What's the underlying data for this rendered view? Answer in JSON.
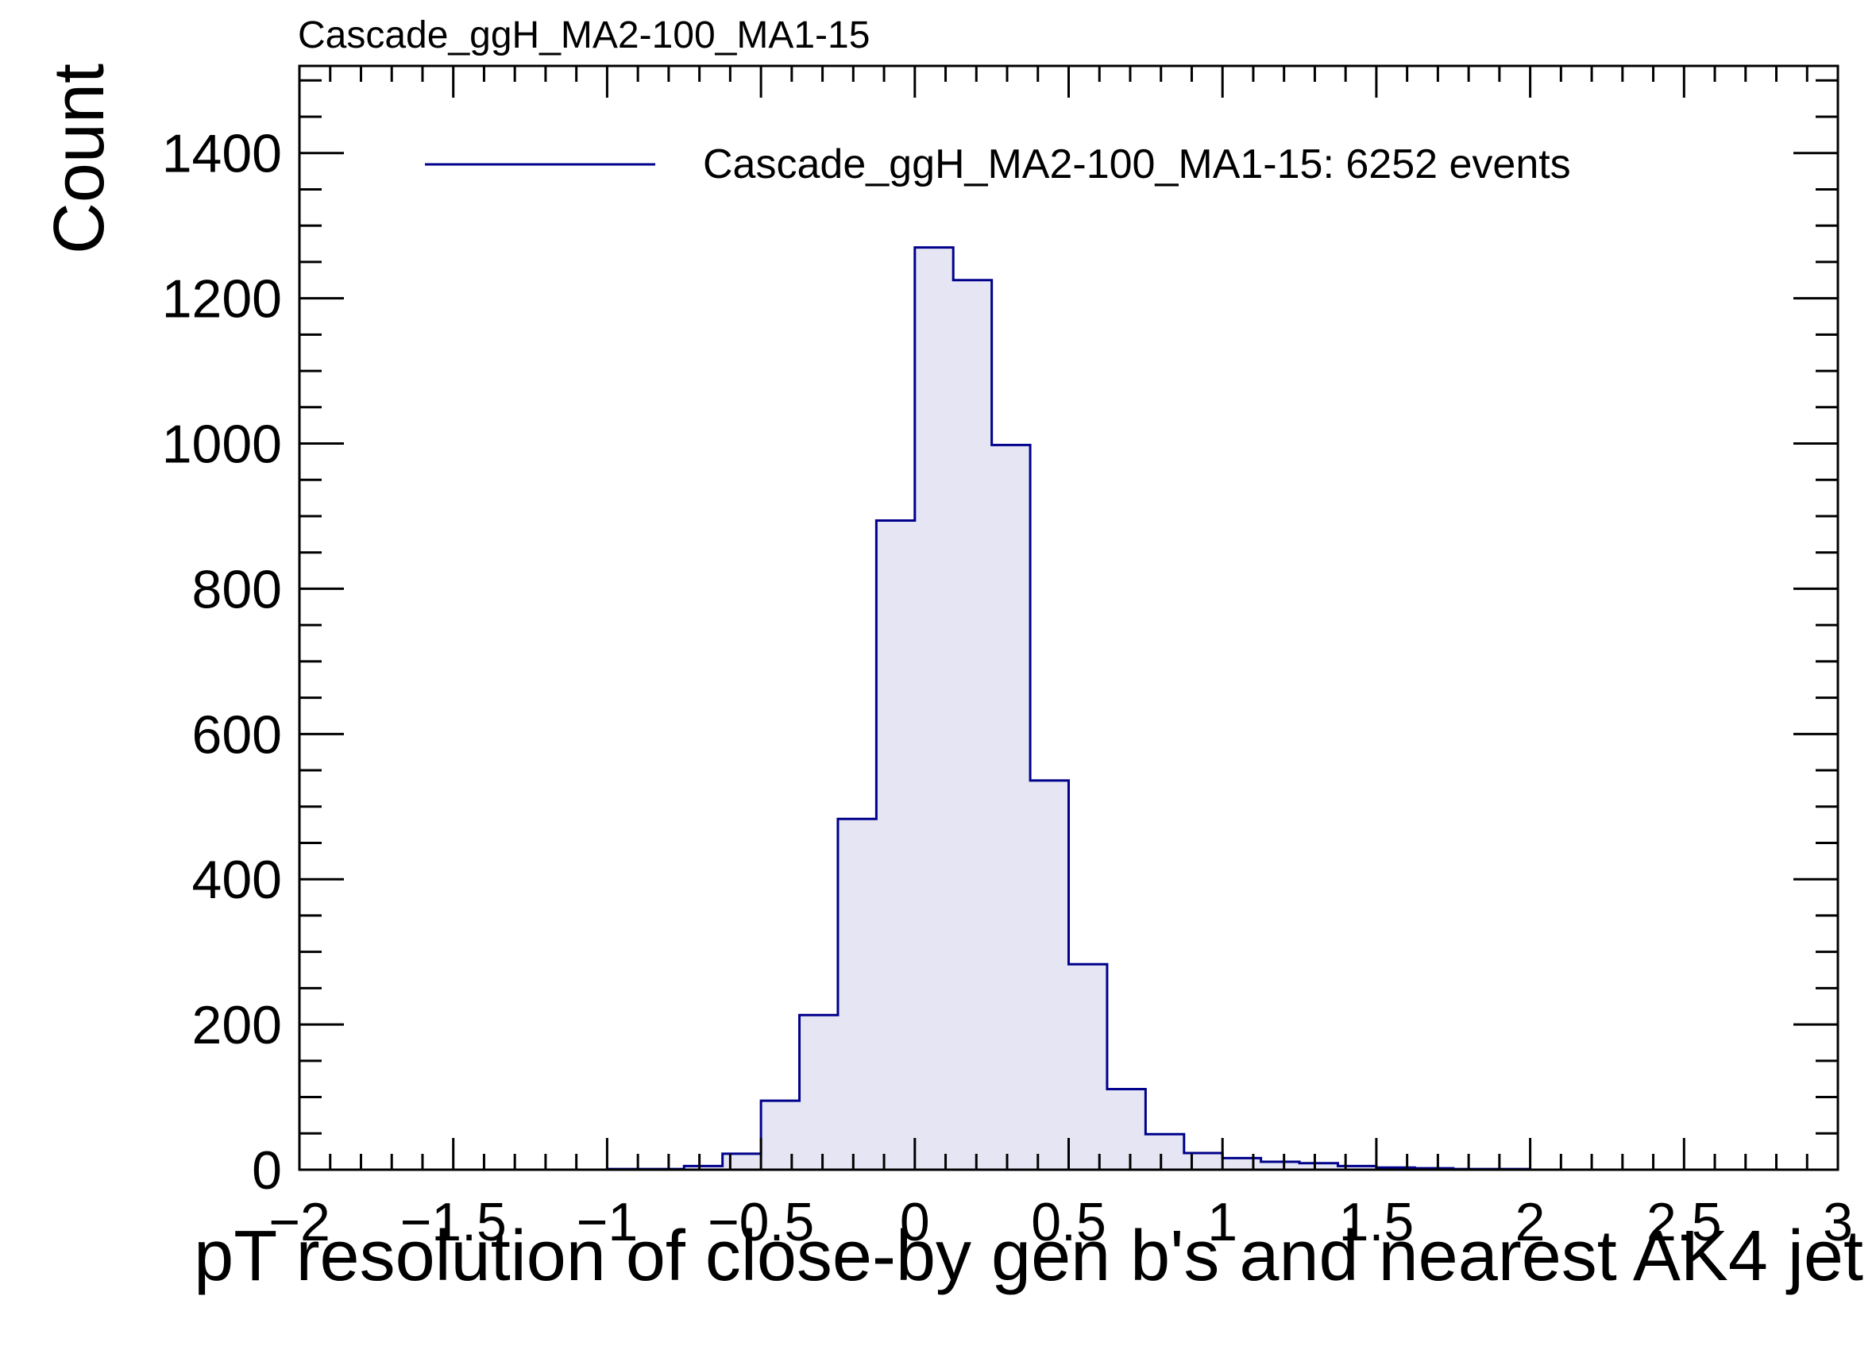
{
  "chart_data": {
    "type": "bar",
    "title": "Cascade_ggH_MA2-100_MA1-15",
    "xlabel": "pT resolution of close-by gen b's and nearest AK4 jet",
    "ylabel": "Count",
    "xlim": [
      -2,
      3
    ],
    "ylim": [
      0,
      1520
    ],
    "grid": false,
    "legend_position": "top",
    "x_ticks": [
      {
        "value": -2,
        "label": "−2"
      },
      {
        "value": -1.5,
        "label": "−1.5"
      },
      {
        "value": -1,
        "label": "−1"
      },
      {
        "value": -0.5,
        "label": "−0.5"
      },
      {
        "value": 0,
        "label": "0"
      },
      {
        "value": 0.5,
        "label": "0.5"
      },
      {
        "value": 1,
        "label": "1"
      },
      {
        "value": 1.5,
        "label": "1.5"
      },
      {
        "value": 2,
        "label": "2"
      },
      {
        "value": 2.5,
        "label": "2.5"
      },
      {
        "value": 3,
        "label": "3"
      }
    ],
    "y_ticks": [
      {
        "value": 0,
        "label": "0"
      },
      {
        "value": 200,
        "label": "200"
      },
      {
        "value": 400,
        "label": "400"
      },
      {
        "value": 600,
        "label": "600"
      },
      {
        "value": 800,
        "label": "800"
      },
      {
        "value": 1000,
        "label": "1000"
      },
      {
        "value": 1200,
        "label": "1200"
      },
      {
        "value": 1400,
        "label": "1400"
      }
    ],
    "bin_edges": [
      -2.0,
      -1.875,
      -1.75,
      -1.625,
      -1.5,
      -1.375,
      -1.25,
      -1.125,
      -1.0,
      -0.875,
      -0.75,
      -0.625,
      -0.5,
      -0.375,
      -0.25,
      -0.125,
      0.0,
      0.125,
      0.25,
      0.375,
      0.5,
      0.625,
      0.75,
      0.875,
      1.0,
      1.125,
      1.25,
      1.375,
      1.5,
      1.625,
      1.75,
      1.875,
      2.0,
      2.125,
      2.25,
      2.375,
      2.5,
      2.625,
      2.75,
      2.875,
      3.0
    ],
    "series": [
      {
        "name": "Cascade_ggH_MA2-100_MA1-15: 6252 events",
        "line_color": "#00008b",
        "fill_color": "#e5e5f3",
        "values": [
          0,
          0,
          0,
          0,
          0,
          0,
          0,
          0,
          1,
          1,
          5,
          22,
          95,
          213,
          483,
          894,
          1270,
          1225,
          998,
          536,
          283,
          111,
          49,
          23,
          16,
          11,
          9,
          5,
          3,
          2,
          1,
          1,
          0,
          0,
          0,
          0,
          0,
          0,
          0,
          0
        ]
      }
    ]
  }
}
